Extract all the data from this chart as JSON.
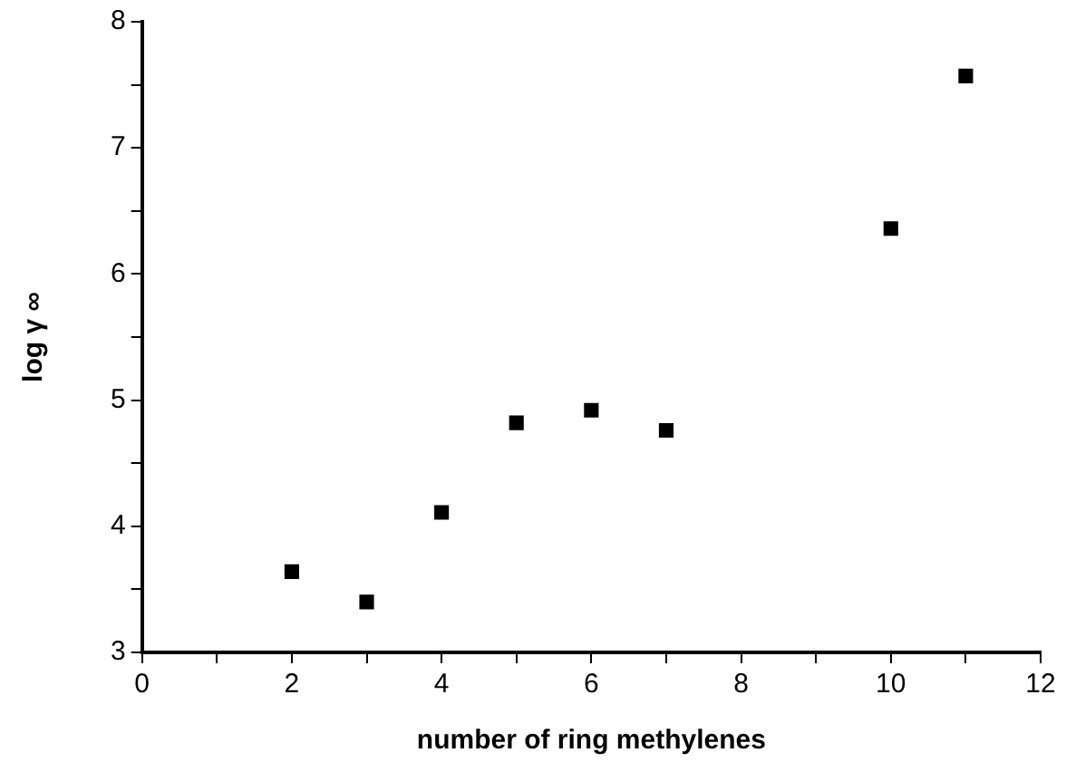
{
  "chart_data": {
    "type": "scatter",
    "xlabel": "number of ring methylenes",
    "ylabel": "log γ ∞",
    "x": [
      2,
      3,
      4,
      5,
      6,
      7,
      10,
      11
    ],
    "values": [
      3.64,
      3.4,
      4.11,
      4.82,
      4.92,
      4.76,
      6.36,
      7.57
    ],
    "color": "#000000",
    "marker": "square",
    "xlim": [
      0,
      12
    ],
    "xticks": [
      0,
      {
        "value": 1,
        "label": null
      },
      2,
      {
        "value": 3,
        "label": null
      },
      4,
      {
        "value": 5,
        "label": null
      },
      6,
      {
        "value": 7,
        "label": null
      },
      8,
      {
        "value": 9,
        "label": null
      },
      10,
      {
        "value": 11,
        "label": null
      },
      12
    ],
    "ylim": [
      3,
      8
    ],
    "yticks": [
      3,
      {
        "value": 3.5,
        "label": null
      },
      4,
      {
        "value": 4.5,
        "label": null
      },
      5,
      {
        "value": 5.5,
        "label": null
      },
      6,
      {
        "value": 6.5,
        "label": null
      },
      7,
      {
        "value": 7.5,
        "label": null
      },
      8
    ],
    "grid": false,
    "legend": false
  }
}
